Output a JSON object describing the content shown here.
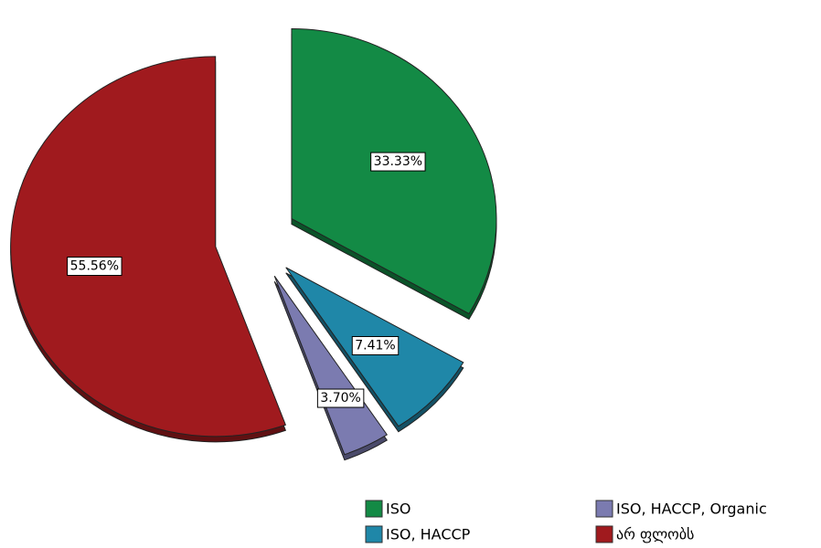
{
  "chart_data": {
    "type": "pie",
    "categories": [
      "ISO",
      "ISO, HACCP",
      "ISO, HACCP, Organic",
      "არ ფლობს"
    ],
    "values": [
      33.33,
      7.41,
      3.7,
      55.56
    ],
    "value_labels": [
      "33.33%",
      "7.41%",
      "3.70%",
      "55.56%"
    ],
    "colors": [
      "#138a45",
      "#1f87a8",
      "#7b7bb0",
      "#a01a1e"
    ]
  }
}
